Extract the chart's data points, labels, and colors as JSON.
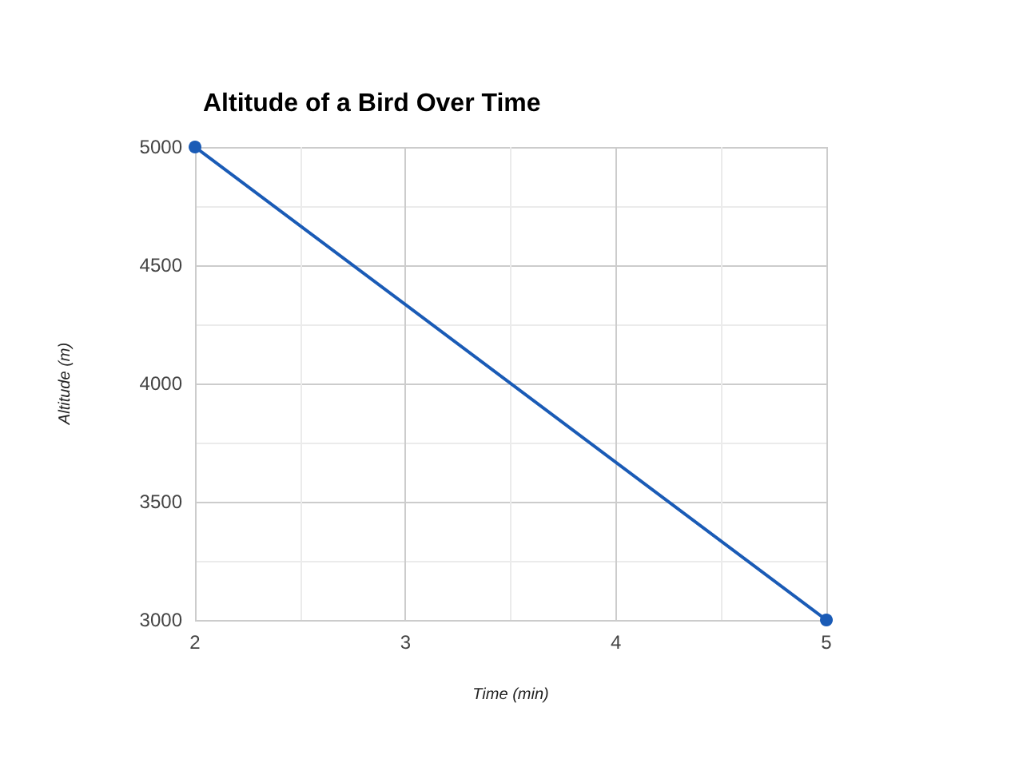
{
  "chart_data": {
    "type": "line",
    "title": "Altitude of a Bird Over Time",
    "xlabel": "Time (min)",
    "ylabel": "Altitude (m)",
    "x": [
      2,
      5
    ],
    "series": [
      {
        "color": "#1a5bb6",
        "values": [
          5000,
          3000
        ]
      }
    ],
    "xlim": [
      2,
      5
    ],
    "xticks": [
      2,
      {
        "value": 2.5,
        "label": null
      },
      3,
      {
        "value": 3.5,
        "label": null
      },
      4,
      {
        "value": 4.5,
        "label": null
      },
      5
    ],
    "ylim": [
      3000,
      5000
    ],
    "yticks": [
      3000,
      {
        "value": 3250,
        "label": null
      },
      3500,
      {
        "value": 3750,
        "label": null
      },
      4000,
      {
        "value": 4250,
        "label": null
      },
      4500,
      {
        "value": 4750,
        "label": null
      },
      5000
    ],
    "grid": true,
    "marker": "circle",
    "line_style": "solid"
  }
}
